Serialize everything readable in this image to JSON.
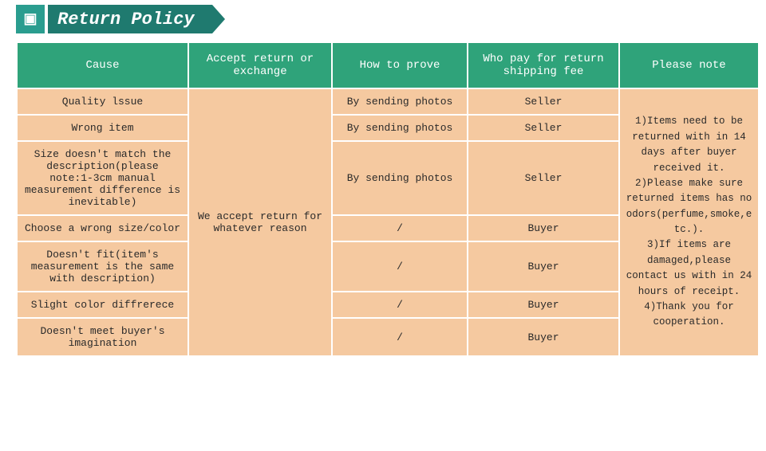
{
  "banner": {
    "icon_glyph": "▣",
    "title": "Return Policy"
  },
  "colors": {
    "banner_icon_bg": "#2a9d8f",
    "banner_title_bg": "#1f7a6f",
    "header_bg": "#2fa37a",
    "cell_bg": "#f5c9a0",
    "border": "#ffffff",
    "text": "#2a2a2a",
    "header_text": "#ffffff"
  },
  "table": {
    "columns": [
      "Cause",
      "Accept return or exchange",
      "How to prove",
      "Who pay for return shipping fee",
      "Please note"
    ],
    "accept_text": "We accept return for whatever reason",
    "note_text": "1)Items need to be returned with in 14 days after buyer received it.\n2)Please make sure returned items has no odors(perfume,smoke,etc.).\n3)If items are damaged,please contact us with in 24 hours of receipt.\n4)Thank you for cooperation.",
    "rows": [
      {
        "cause": "Quality lssue",
        "prove": "By sending photos",
        "who": "Seller"
      },
      {
        "cause": "Wrong item",
        "prove": "By sending photos",
        "who": "Seller"
      },
      {
        "cause": "Size doesn't match the description(please note:1-3cm manual measurement difference is inevitable)",
        "prove": "By sending photos",
        "who": "Seller"
      },
      {
        "cause": "Choose a wrong size/color",
        "prove": "/",
        "who": "Buyer"
      },
      {
        "cause": "Doesn't fit(item's measurement is the same with description)",
        "prove": "/",
        "who": "Buyer"
      },
      {
        "cause": "Slight color diffrerece",
        "prove": "/",
        "who": "Buyer"
      },
      {
        "cause": "Doesn't meet buyer's imagination",
        "prove": "/",
        "who": "Buyer"
      }
    ]
  }
}
